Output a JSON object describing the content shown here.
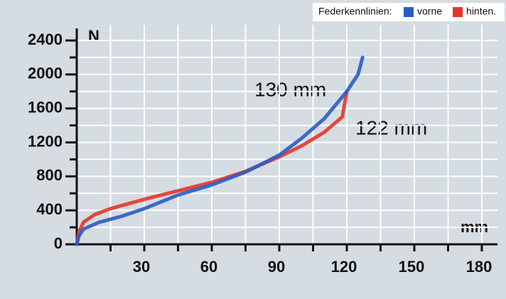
{
  "chart_data": {
    "type": "line",
    "legend_title": "Federkennlinien:",
    "x_label": "mm",
    "y_label": "N",
    "annotations": [
      "130 mm",
      "122 mm"
    ],
    "xlim": [
      0,
      180
    ],
    "ylim": [
      0,
      2400
    ],
    "xticks": [
      30,
      60,
      90,
      120,
      150,
      180
    ],
    "xminorticks": [
      15,
      45,
      75,
      105,
      135,
      165
    ],
    "yticks": [
      0,
      400,
      800,
      1200,
      1600,
      2000,
      2400
    ],
    "yminorticks": [
      200,
      600,
      1000,
      1400,
      1800,
      2200
    ],
    "grid": true,
    "series": [
      {
        "name": "vorne",
        "color": "#2a5cc8",
        "x": [
          0,
          1,
          3,
          10,
          20,
          30,
          45,
          60,
          75,
          90,
          100,
          110,
          120,
          125,
          127
        ],
        "values": [
          0,
          100,
          180,
          260,
          330,
          420,
          580,
          700,
          850,
          1050,
          1250,
          1480,
          1800,
          2000,
          2200
        ]
      },
      {
        "name": "hinten.",
        "color": "#e8332a",
        "x": [
          0,
          1,
          3,
          8,
          15,
          30,
          45,
          60,
          75,
          90,
          100,
          110,
          118,
          120
        ],
        "values": [
          0,
          150,
          260,
          350,
          420,
          530,
          630,
          730,
          860,
          1030,
          1160,
          1320,
          1500,
          1800
        ]
      }
    ]
  }
}
